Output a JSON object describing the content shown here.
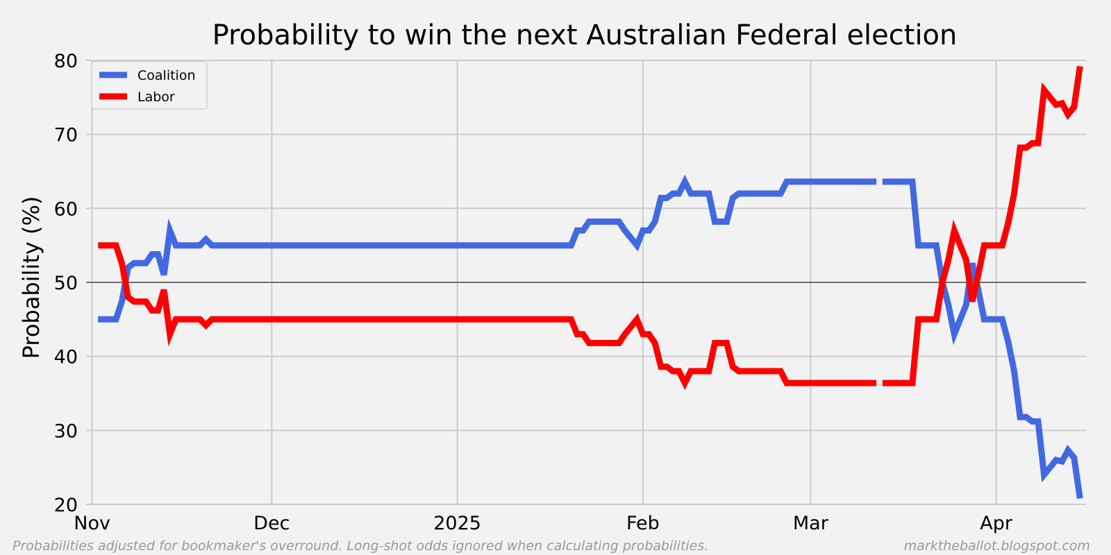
{
  "chart_data": {
    "type": "line",
    "title": "Probability to win the next Australian Federal election",
    "xlabel": "",
    "ylabel": "Probability (%)",
    "ylim": [
      20,
      80
    ],
    "xlim": [
      "2024-10-31",
      "2025-04-16"
    ],
    "yticks": [
      20,
      30,
      40,
      50,
      60,
      70,
      80
    ],
    "xticks": [
      {
        "date": "2024-11-01",
        "label": "Nov"
      },
      {
        "date": "2024-12-01",
        "label": "Dec"
      },
      {
        "date": "2025-01-01",
        "label": "2025"
      },
      {
        "date": "2025-02-01",
        "label": "Feb"
      },
      {
        "date": "2025-03-01",
        "label": "Mar"
      },
      {
        "date": "2025-04-01",
        "label": "Apr"
      }
    ],
    "grid": true,
    "reference_line": 50,
    "legend_position": "top-left",
    "series": [
      {
        "name": "Coalition",
        "color": "#4169e1",
        "points": [
          [
            "2024-11-02",
            45
          ],
          [
            "2024-11-05",
            45
          ],
          [
            "2024-11-06",
            47.5
          ],
          [
            "2024-11-07",
            52
          ],
          [
            "2024-11-08",
            52.6
          ],
          [
            "2024-11-10",
            52.6
          ],
          [
            "2024-11-11",
            53.8
          ],
          [
            "2024-11-12",
            53.8
          ],
          [
            "2024-11-13",
            51
          ],
          [
            "2024-11-14",
            57
          ],
          [
            "2024-11-15",
            55
          ],
          [
            "2024-11-19",
            55
          ],
          [
            "2024-11-20",
            55.8
          ],
          [
            "2024-11-21",
            55
          ],
          [
            "2025-01-20",
            55
          ],
          [
            "2025-01-21",
            57
          ],
          [
            "2025-01-22",
            57
          ],
          [
            "2025-01-23",
            58.2
          ],
          [
            "2025-01-28",
            58.2
          ],
          [
            "2025-01-29",
            57
          ],
          [
            "2025-01-31",
            55
          ],
          [
            "2025-02-01",
            57
          ],
          [
            "2025-02-02",
            57
          ],
          [
            "2025-02-03",
            58.2
          ],
          [
            "2025-02-04",
            61.4
          ],
          [
            "2025-02-05",
            61.4
          ],
          [
            "2025-02-06",
            62
          ],
          [
            "2025-02-07",
            62
          ],
          [
            "2025-02-08",
            63.6
          ],
          [
            "2025-02-09",
            62
          ],
          [
            "2025-02-12",
            62
          ],
          [
            "2025-02-13",
            58.2
          ],
          [
            "2025-02-15",
            58.2
          ],
          [
            "2025-02-16",
            61.4
          ],
          [
            "2025-02-17",
            62
          ],
          [
            "2025-02-24",
            62
          ],
          [
            "2025-02-25",
            63.6
          ],
          [
            "2025-03-12",
            63.6
          ],
          null,
          [
            "2025-03-13",
            63.6
          ],
          [
            "2025-03-18",
            63.6
          ],
          [
            "2025-03-19",
            55
          ],
          [
            "2025-03-22",
            55
          ],
          [
            "2025-03-23",
            50
          ],
          [
            "2025-03-24",
            47
          ],
          [
            "2025-03-25",
            43
          ],
          [
            "2025-03-27",
            47
          ],
          [
            "2025-03-28",
            52.6
          ],
          [
            "2025-03-29",
            49
          ],
          [
            "2025-03-30",
            45
          ],
          [
            "2025-04-02",
            45
          ],
          [
            "2025-04-03",
            42
          ],
          [
            "2025-04-04",
            38
          ],
          [
            "2025-04-05",
            31.8
          ],
          [
            "2025-04-06",
            31.8
          ],
          [
            "2025-04-07",
            31.2
          ],
          [
            "2025-04-08",
            31.2
          ],
          [
            "2025-04-09",
            24
          ],
          [
            "2025-04-10",
            25
          ],
          [
            "2025-04-11",
            26
          ],
          [
            "2025-04-12",
            25.8
          ],
          [
            "2025-04-13",
            27.3
          ],
          [
            "2025-04-14",
            26.3
          ],
          [
            "2025-04-15",
            20.8
          ]
        ]
      },
      {
        "name": "Labor",
        "color": "#ff0000",
        "points": [
          [
            "2024-11-02",
            55
          ],
          [
            "2024-11-05",
            55
          ],
          [
            "2024-11-06",
            52.5
          ],
          [
            "2024-11-07",
            48
          ],
          [
            "2024-11-08",
            47.4
          ],
          [
            "2024-11-10",
            47.4
          ],
          [
            "2024-11-11",
            46.2
          ],
          [
            "2024-11-12",
            46.2
          ],
          [
            "2024-11-13",
            49
          ],
          [
            "2024-11-14",
            43
          ],
          [
            "2024-11-15",
            45
          ],
          [
            "2024-11-19",
            45
          ],
          [
            "2024-11-20",
            44.2
          ],
          [
            "2024-11-21",
            45
          ],
          [
            "2025-01-20",
            45
          ],
          [
            "2025-01-21",
            43
          ],
          [
            "2025-01-22",
            43
          ],
          [
            "2025-01-23",
            41.8
          ],
          [
            "2025-01-28",
            41.8
          ],
          [
            "2025-01-29",
            43
          ],
          [
            "2025-01-31",
            45
          ],
          [
            "2025-02-01",
            43
          ],
          [
            "2025-02-02",
            43
          ],
          [
            "2025-02-03",
            41.8
          ],
          [
            "2025-02-04",
            38.6
          ],
          [
            "2025-02-05",
            38.6
          ],
          [
            "2025-02-06",
            38
          ],
          [
            "2025-02-07",
            38
          ],
          [
            "2025-02-08",
            36.4
          ],
          [
            "2025-02-09",
            38
          ],
          [
            "2025-02-12",
            38
          ],
          [
            "2025-02-13",
            41.8
          ],
          [
            "2025-02-15",
            41.8
          ],
          [
            "2025-02-16",
            38.6
          ],
          [
            "2025-02-17",
            38
          ],
          [
            "2025-02-24",
            38
          ],
          [
            "2025-02-25",
            36.4
          ],
          [
            "2025-03-12",
            36.4
          ],
          null,
          [
            "2025-03-13",
            36.4
          ],
          [
            "2025-03-18",
            36.4
          ],
          [
            "2025-03-19",
            45
          ],
          [
            "2025-03-22",
            45
          ],
          [
            "2025-03-23",
            50
          ],
          [
            "2025-03-24",
            53
          ],
          [
            "2025-03-25",
            57
          ],
          [
            "2025-03-27",
            53
          ],
          [
            "2025-03-28",
            47.4
          ],
          [
            "2025-03-29",
            51
          ],
          [
            "2025-03-30",
            55
          ],
          [
            "2025-04-02",
            55
          ],
          [
            "2025-04-03",
            58
          ],
          [
            "2025-04-04",
            62
          ],
          [
            "2025-04-05",
            68.2
          ],
          [
            "2025-04-06",
            68.2
          ],
          [
            "2025-04-07",
            68.8
          ],
          [
            "2025-04-08",
            68.8
          ],
          [
            "2025-04-09",
            76
          ],
          [
            "2025-04-10",
            75
          ],
          [
            "2025-04-11",
            74
          ],
          [
            "2025-04-12",
            74.2
          ],
          [
            "2025-04-13",
            72.7
          ],
          [
            "2025-04-14",
            73.7
          ],
          [
            "2025-04-15",
            79.2
          ]
        ]
      }
    ]
  },
  "footer": {
    "left": "Probabilities adjusted for bookmaker's overround. Long-shot odds ignored when calculating probabilities.",
    "right": "marktheballot.blogspot.com"
  }
}
